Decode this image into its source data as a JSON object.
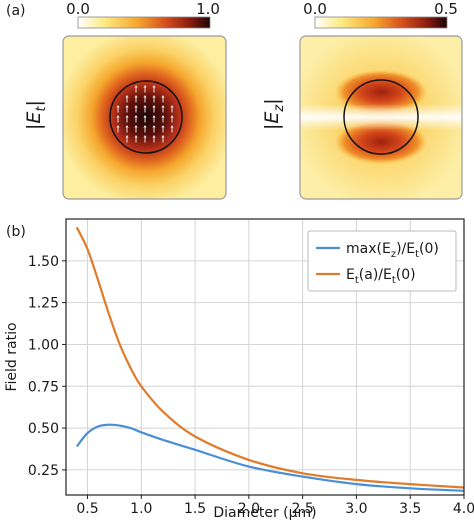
{
  "panel_a": {
    "label": "(a)",
    "maps": [
      {
        "ylabel_main": "|E",
        "ylabel_sub": "t",
        "ylabel_close": "|",
        "cbar_min": "0.0",
        "cbar_max": "1.0",
        "pattern": "transverse field: peak at centre, arrows pointing up"
      },
      {
        "ylabel_main": "|E",
        "ylabel_sub": "z",
        "ylabel_close": "|",
        "cbar_min": "0.0",
        "cbar_max": "0.5",
        "pattern": "longitudinal field: two lobes top and bottom"
      }
    ],
    "colormap": [
      "#ffffff",
      "#fdeb83",
      "#f5a72e",
      "#d9531e",
      "#8a1a10",
      "#1a0504"
    ]
  },
  "panel_b": {
    "label": "(b)"
  },
  "chart_data": {
    "type": "line",
    "xlabel": "Diameter (µm)",
    "ylabel": "Field ratio",
    "xlim": [
      0.3,
      4.0
    ],
    "ylim": [
      0.1,
      1.75
    ],
    "xticks": [
      "0.5",
      "1.0",
      "1.5",
      "2.0",
      "2.5",
      "3.0",
      "3.5",
      "4.0"
    ],
    "yticks": [
      "0.25",
      "0.50",
      "0.75",
      "1.00",
      "1.25",
      "1.50"
    ],
    "grid": true,
    "legend_position": "top-right",
    "series": [
      {
        "name": "max(Ez)/Et(0)",
        "legend_main": "max(E",
        "legend_sub1": "z",
        "legend_mid": ")/E",
        "legend_sub2": "t",
        "legend_end": "(0)",
        "color": "#4a8fd6",
        "x": [
          0.4,
          0.5,
          0.6,
          0.7,
          0.8,
          0.9,
          1.0,
          1.2,
          1.5,
          2.0,
          2.5,
          3.0,
          3.5,
          4.0
        ],
        "y": [
          0.39,
          0.47,
          0.51,
          0.52,
          0.515,
          0.5,
          0.475,
          0.43,
          0.37,
          0.27,
          0.21,
          0.165,
          0.14,
          0.125
        ]
      },
      {
        "name": "Et(a)/Et(0)",
        "legend_main": "E",
        "legend_sub1": "t",
        "legend_mid": "(a)/E",
        "legend_sub2": "t",
        "legend_end": "(0)",
        "color": "#e07b2a",
        "x": [
          0.4,
          0.5,
          0.6,
          0.7,
          0.8,
          0.9,
          1.0,
          1.2,
          1.5,
          2.0,
          2.5,
          3.0,
          3.5,
          4.0
        ],
        "y": [
          1.7,
          1.57,
          1.38,
          1.18,
          1.0,
          0.86,
          0.75,
          0.6,
          0.45,
          0.31,
          0.23,
          0.19,
          0.165,
          0.145
        ]
      }
    ]
  }
}
